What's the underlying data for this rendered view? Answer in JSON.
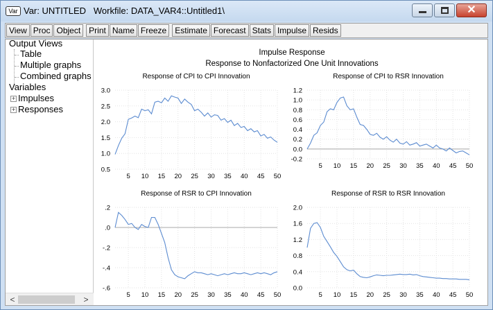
{
  "window": {
    "title": "Var: UNTITLED   Workfile: DATA_VAR4::Untitled1\\",
    "app_icon": "Var",
    "close_glyph": "✕"
  },
  "toolbar": {
    "items": [
      "View",
      "Proc",
      "Object",
      "Print",
      "Name",
      "Freeze",
      "Estimate",
      "Forecast",
      "Stats",
      "Impulse",
      "Resids"
    ]
  },
  "tree": {
    "output_views": "Output Views",
    "table": "Table",
    "multiple_graphs": "Multiple graphs",
    "combined_graphs": "Combined graphs",
    "variables": "Variables",
    "impulses": "Impulses",
    "responses": "Responses",
    "expander_glyph": "+",
    "scroll_left": "<",
    "scroll_right": ">"
  },
  "graph": {
    "title": "Impulse Response",
    "subtitle": "Response to Nonfactorized One Unit Innovations"
  },
  "chart_data": [
    {
      "type": "line",
      "title": "Response of CPI to CPI Innovation",
      "xlim": [
        1,
        50
      ],
      "xticks": [
        5,
        10,
        15,
        20,
        25,
        30,
        35,
        40,
        45,
        50
      ],
      "ylim": [
        0.5,
        3.0
      ],
      "yticks": [
        0.5,
        1.0,
        1.5,
        2.0,
        2.5,
        3.0
      ],
      "ytick_labels": [
        "0.5",
        "1.0",
        "1.5",
        "2.0",
        "2.5",
        "3.0"
      ],
      "zero_line": false,
      "color": "#5b8bd0",
      "x": [
        1,
        2,
        3,
        4,
        5,
        6,
        7,
        8,
        9,
        10,
        11,
        12,
        13,
        14,
        15,
        16,
        17,
        18,
        19,
        20,
        21,
        22,
        23,
        24,
        25,
        26,
        27,
        28,
        29,
        30,
        31,
        32,
        33,
        34,
        35,
        36,
        37,
        38,
        39,
        40,
        41,
        42,
        43,
        44,
        45,
        46,
        47,
        48,
        49,
        50
      ],
      "values": [
        0.97,
        1.25,
        1.48,
        1.62,
        2.08,
        2.12,
        2.18,
        2.13,
        2.4,
        2.35,
        2.38,
        2.25,
        2.62,
        2.65,
        2.6,
        2.75,
        2.65,
        2.82,
        2.78,
        2.75,
        2.58,
        2.72,
        2.62,
        2.55,
        2.35,
        2.4,
        2.3,
        2.18,
        2.28,
        2.15,
        2.22,
        2.2,
        2.05,
        2.1,
        1.98,
        2.05,
        1.88,
        1.95,
        1.82,
        1.85,
        1.72,
        1.78,
        1.68,
        1.72,
        1.55,
        1.6,
        1.48,
        1.52,
        1.42,
        1.35
      ]
    },
    {
      "type": "line",
      "title": "Response of CPI to RSR Innovation",
      "xlim": [
        1,
        50
      ],
      "xticks": [
        5,
        10,
        15,
        20,
        25,
        30,
        35,
        40,
        45,
        50
      ],
      "ylim": [
        -0.2,
        1.2
      ],
      "yticks": [
        -0.2,
        0.0,
        0.2,
        0.4,
        0.6,
        0.8,
        1.0,
        1.2
      ],
      "ytick_labels": [
        "-0.2",
        "0.0",
        "0.2",
        "0.4",
        "0.6",
        "0.8",
        "1.0",
        "1.2"
      ],
      "zero_line": true,
      "color": "#5b8bd0",
      "x": [
        1,
        2,
        3,
        4,
        5,
        6,
        7,
        8,
        9,
        10,
        11,
        12,
        13,
        14,
        15,
        16,
        17,
        18,
        19,
        20,
        21,
        22,
        23,
        24,
        25,
        26,
        27,
        28,
        29,
        30,
        31,
        32,
        33,
        34,
        35,
        36,
        37,
        38,
        39,
        40,
        41,
        42,
        43,
        44,
        45,
        46,
        47,
        48,
        49,
        50
      ],
      "values": [
        0.0,
        0.12,
        0.28,
        0.33,
        0.48,
        0.55,
        0.76,
        0.82,
        0.8,
        0.95,
        1.04,
        1.06,
        0.88,
        0.8,
        0.82,
        0.65,
        0.5,
        0.48,
        0.4,
        0.3,
        0.28,
        0.32,
        0.24,
        0.2,
        0.25,
        0.18,
        0.14,
        0.2,
        0.12,
        0.1,
        0.15,
        0.08,
        0.1,
        0.13,
        0.06,
        0.08,
        0.1,
        0.06,
        0.02,
        0.08,
        0.02,
        0.0,
        -0.04,
        0.02,
        -0.03,
        -0.08,
        -0.05,
        -0.04,
        -0.08,
        -0.12
      ]
    },
    {
      "type": "line",
      "title": "Response of RSR to CPI Innovation",
      "xlim": [
        1,
        50
      ],
      "xticks": [
        5,
        10,
        15,
        20,
        25,
        30,
        35,
        40,
        45,
        50
      ],
      "ylim": [
        -0.6,
        0.2
      ],
      "yticks": [
        -0.6,
        -0.4,
        -0.2,
        0.0,
        0.2
      ],
      "ytick_labels": [
        "-.6",
        "-.4",
        "-.2",
        ".0",
        ".2"
      ],
      "zero_line": true,
      "color": "#5b8bd0",
      "x": [
        1,
        2,
        3,
        4,
        5,
        6,
        7,
        8,
        9,
        10,
        11,
        12,
        13,
        14,
        15,
        16,
        17,
        18,
        19,
        20,
        21,
        22,
        23,
        24,
        25,
        26,
        27,
        28,
        29,
        30,
        31,
        32,
        33,
        34,
        35,
        36,
        37,
        38,
        39,
        40,
        41,
        42,
        43,
        44,
        45,
        46,
        47,
        48,
        49,
        50
      ],
      "values": [
        0.0,
        0.15,
        0.12,
        0.08,
        0.03,
        0.04,
        0.0,
        -0.02,
        0.03,
        0.01,
        0.0,
        0.1,
        0.1,
        0.03,
        -0.06,
        -0.15,
        -0.3,
        -0.42,
        -0.47,
        -0.49,
        -0.5,
        -0.51,
        -0.48,
        -0.46,
        -0.44,
        -0.45,
        -0.45,
        -0.46,
        -0.47,
        -0.46,
        -0.47,
        -0.48,
        -0.47,
        -0.46,
        -0.47,
        -0.46,
        -0.45,
        -0.46,
        -0.46,
        -0.45,
        -0.46,
        -0.47,
        -0.46,
        -0.45,
        -0.46,
        -0.45,
        -0.46,
        -0.47,
        -0.45,
        -0.44
      ]
    },
    {
      "type": "line",
      "title": "Response of RSR to RSR Innovation",
      "xlim": [
        1,
        50
      ],
      "xticks": [
        5,
        10,
        15,
        20,
        25,
        30,
        35,
        40,
        45,
        50
      ],
      "ylim": [
        0.0,
        2.0
      ],
      "yticks": [
        0.0,
        0.4,
        0.8,
        1.2,
        1.6,
        2.0
      ],
      "ytick_labels": [
        "0.0",
        "0.4",
        "0.8",
        "1.2",
        "1.6",
        "2.0"
      ],
      "zero_line": false,
      "color": "#5b8bd0",
      "x": [
        1,
        2,
        3,
        4,
        5,
        6,
        7,
        8,
        9,
        10,
        11,
        12,
        13,
        14,
        15,
        16,
        17,
        18,
        19,
        20,
        21,
        22,
        23,
        24,
        25,
        26,
        27,
        28,
        29,
        30,
        31,
        32,
        33,
        34,
        35,
        36,
        37,
        38,
        39,
        40,
        41,
        42,
        43,
        44,
        45,
        46,
        47,
        48,
        49,
        50
      ],
      "values": [
        1.0,
        1.48,
        1.6,
        1.62,
        1.5,
        1.28,
        1.15,
        1.02,
        0.88,
        0.78,
        0.65,
        0.52,
        0.45,
        0.42,
        0.44,
        0.35,
        0.28,
        0.26,
        0.25,
        0.27,
        0.3,
        0.32,
        0.31,
        0.3,
        0.31,
        0.31,
        0.32,
        0.33,
        0.34,
        0.33,
        0.33,
        0.34,
        0.32,
        0.33,
        0.3,
        0.28,
        0.27,
        0.26,
        0.25,
        0.24,
        0.24,
        0.23,
        0.23,
        0.22,
        0.22,
        0.22,
        0.21,
        0.21,
        0.21,
        0.2
      ]
    }
  ]
}
